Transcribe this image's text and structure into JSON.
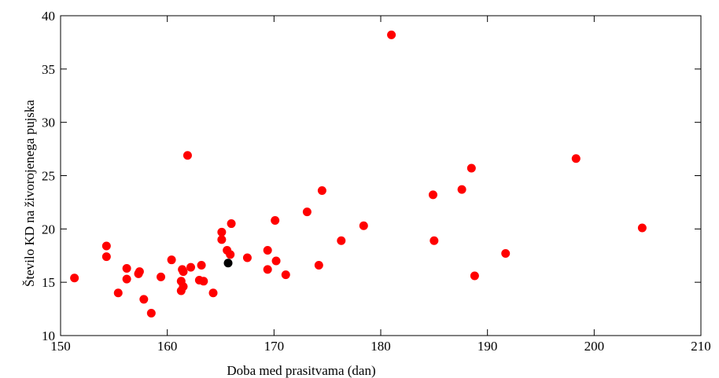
{
  "chart_data": {
    "type": "scatter",
    "title": "",
    "xlabel": "Doba med prasitvama (dan)",
    "ylabel": "Število KD na živorojenega pujska",
    "xlim": [
      150,
      210
    ],
    "ylim": [
      10,
      40
    ],
    "xticks": [
      150,
      160,
      170,
      180,
      190,
      200,
      210
    ],
    "yticks": [
      10,
      15,
      20,
      25,
      30,
      35,
      40
    ],
    "grid": false,
    "legend": "none",
    "series": [
      {
        "color": "#ff0000",
        "points": [
          [
            151.3,
            15.4
          ],
          [
            154.3,
            18.4
          ],
          [
            154.3,
            17.4
          ],
          [
            155.4,
            14.0
          ],
          [
            156.2,
            16.3
          ],
          [
            156.2,
            15.3
          ],
          [
            157.3,
            15.8
          ],
          [
            157.4,
            16.0
          ],
          [
            157.8,
            13.4
          ],
          [
            158.5,
            12.1
          ],
          [
            159.4,
            15.5
          ],
          [
            160.4,
            17.1
          ],
          [
            161.3,
            15.1
          ],
          [
            161.3,
            14.2
          ],
          [
            161.4,
            16.2
          ],
          [
            161.5,
            14.6
          ],
          [
            161.5,
            16.0
          ],
          [
            161.9,
            26.9
          ],
          [
            162.2,
            16.4
          ],
          [
            163.0,
            15.2
          ],
          [
            163.2,
            16.6
          ],
          [
            163.4,
            15.1
          ],
          [
            164.3,
            14.0
          ],
          [
            165.1,
            19.7
          ],
          [
            165.1,
            19.0
          ],
          [
            165.6,
            18.0
          ],
          [
            165.9,
            17.6
          ],
          [
            166.0,
            20.5
          ],
          [
            167.5,
            17.3
          ],
          [
            169.4,
            18.0
          ],
          [
            169.4,
            16.2
          ],
          [
            170.1,
            20.8
          ],
          [
            170.2,
            17.0
          ],
          [
            171.1,
            15.7
          ],
          [
            173.1,
            21.6
          ],
          [
            174.2,
            16.6
          ],
          [
            174.5,
            23.6
          ],
          [
            176.3,
            18.9
          ],
          [
            178.4,
            20.3
          ],
          [
            181.0,
            38.2
          ],
          [
            184.9,
            23.2
          ],
          [
            185.0,
            18.9
          ],
          [
            187.6,
            23.7
          ],
          [
            188.5,
            25.7
          ],
          [
            188.8,
            15.6
          ],
          [
            191.7,
            17.7
          ],
          [
            198.3,
            26.6
          ],
          [
            204.5,
            20.1
          ]
        ]
      },
      {
        "color": "#000000",
        "points": [
          [
            165.7,
            16.8
          ]
        ]
      }
    ]
  }
}
